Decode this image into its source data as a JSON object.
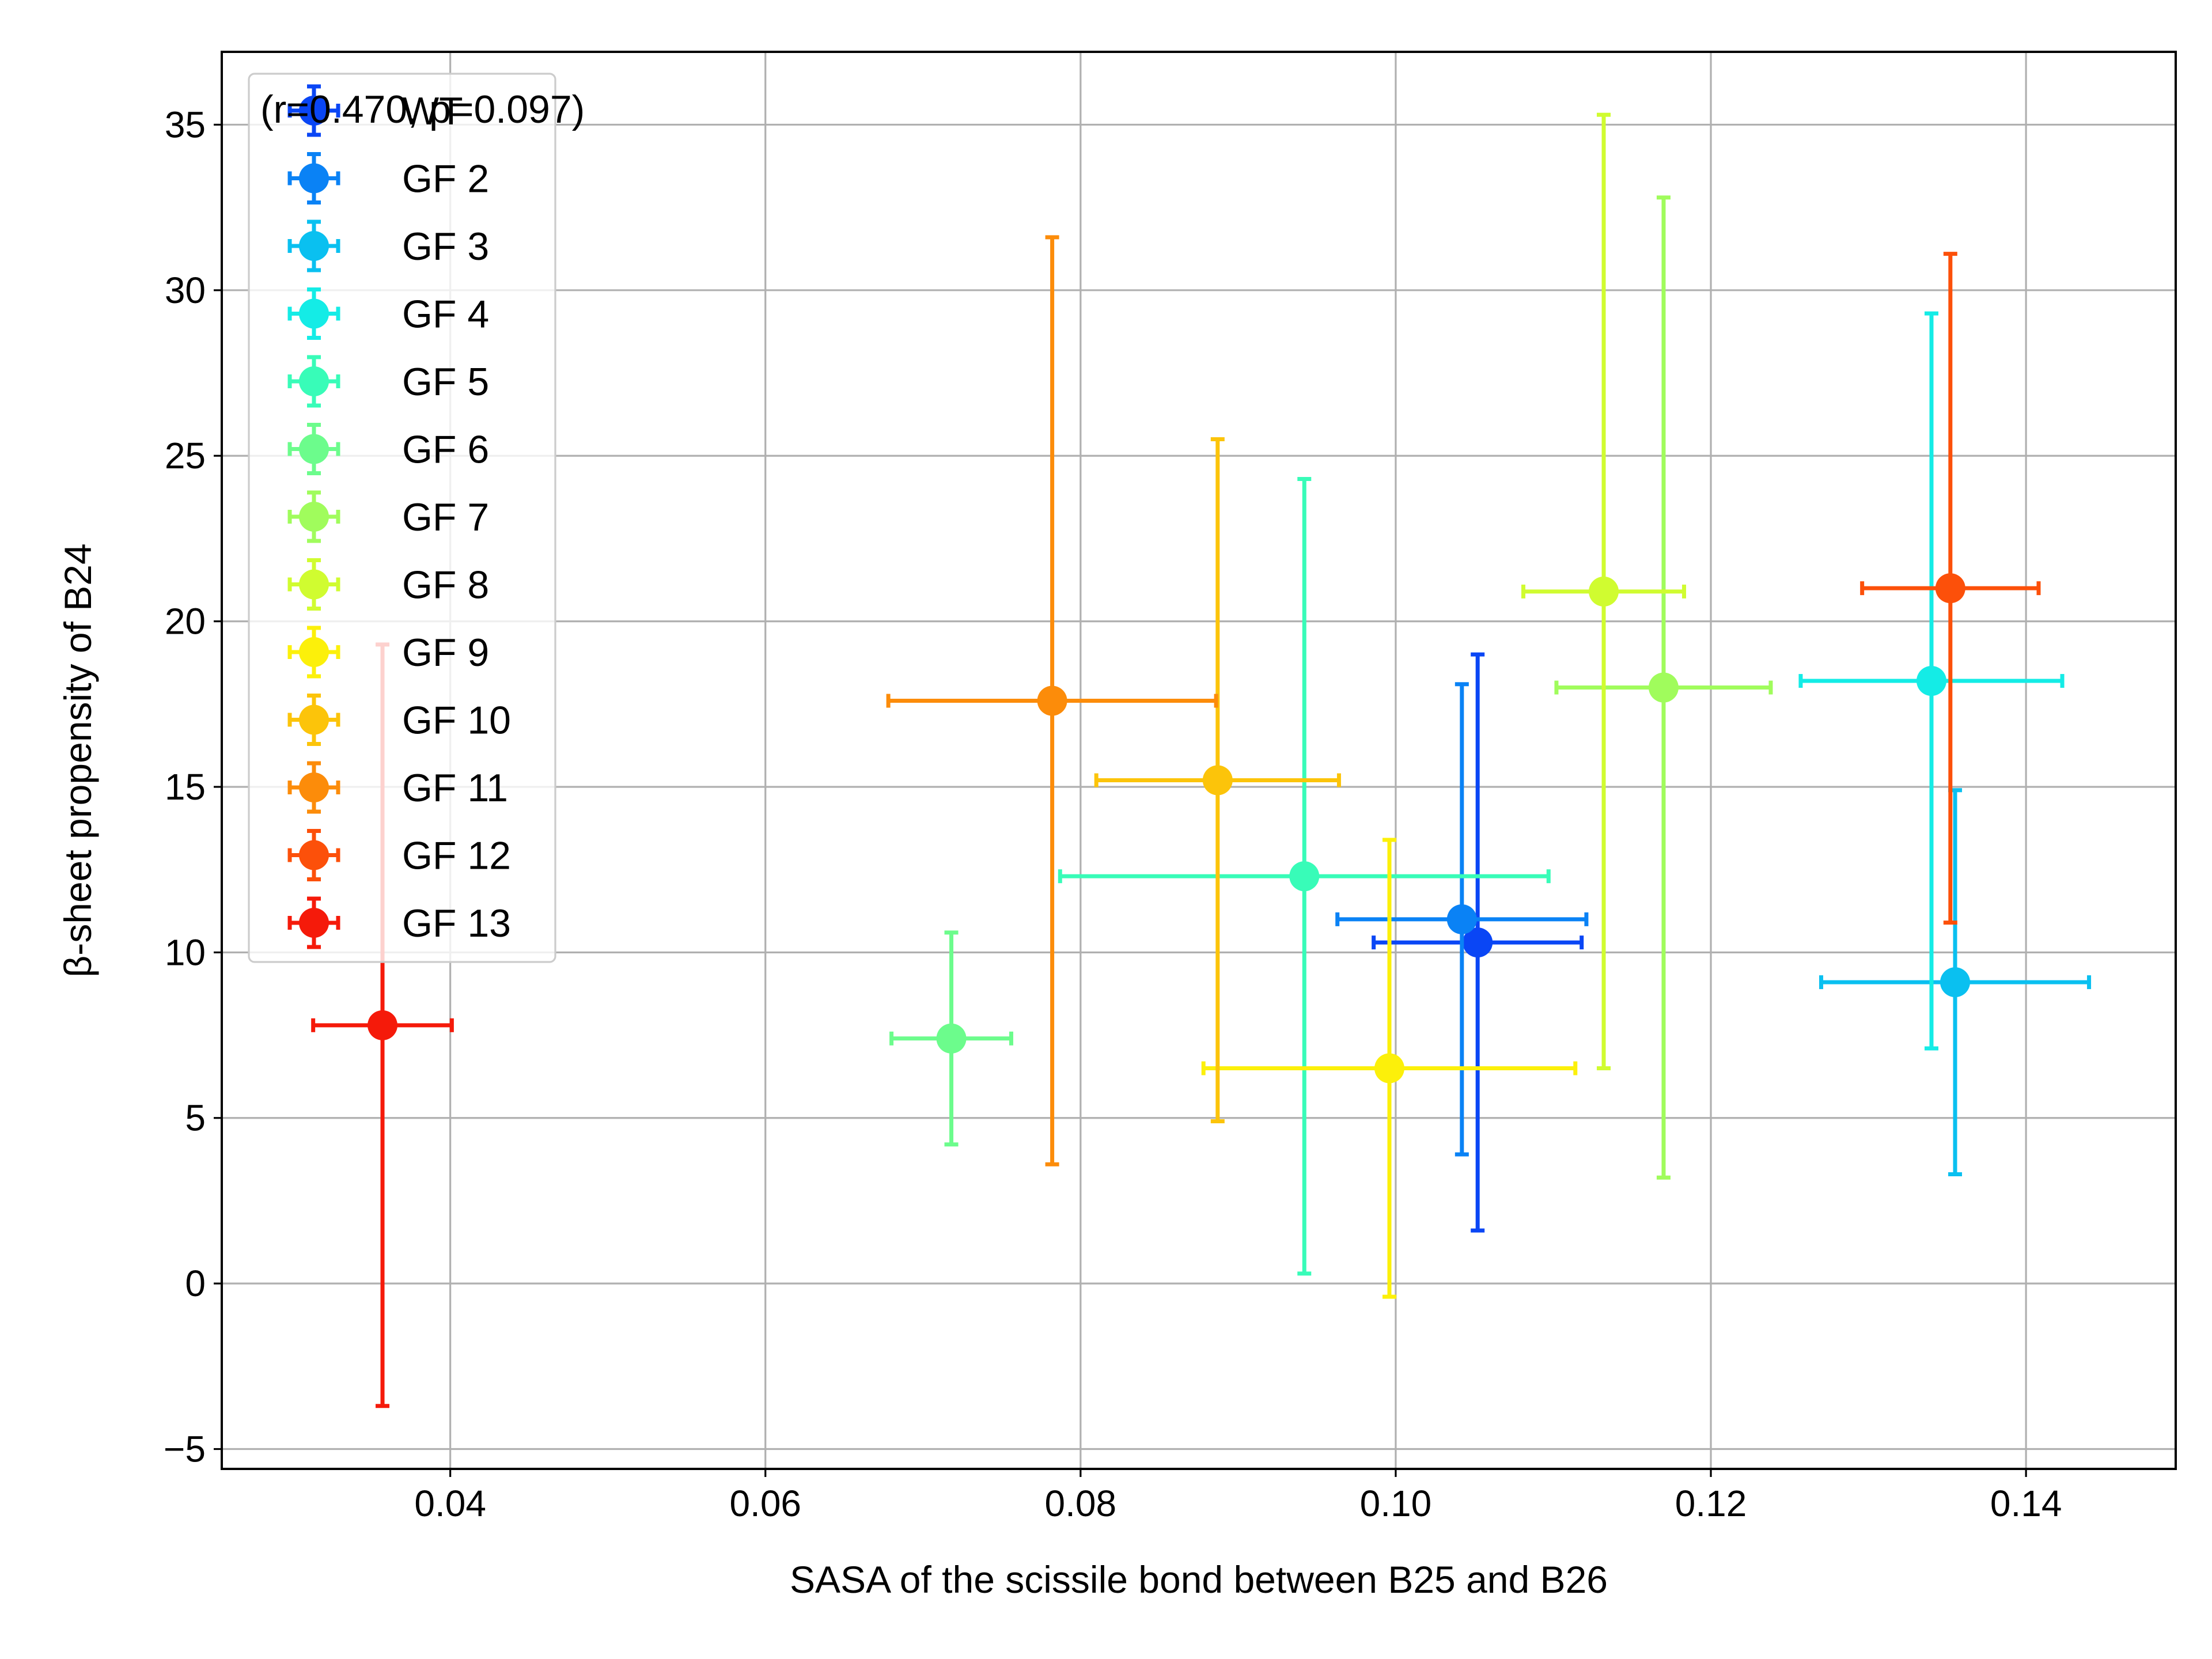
{
  "chart_data": {
    "type": "scatter",
    "title": "",
    "xlabel": "SASA of the scissile bond between B25 and B26",
    "ylabel": "β-sheet propensity of B24",
    "xlim": [
      0.0255,
      0.1495
    ],
    "ylim": [
      -5.6,
      37.2
    ],
    "xticks": [
      0.04,
      0.06,
      0.08,
      0.1,
      0.12,
      0.14
    ],
    "xtick_labels": [
      "0.04",
      "0.06",
      "0.08",
      "0.10",
      "0.12",
      "0.14"
    ],
    "yticks": [
      -5,
      0,
      5,
      10,
      15,
      20,
      25,
      30,
      35
    ],
    "ytick_labels": [
      "−5",
      "0",
      "5",
      "10",
      "15",
      "20",
      "25",
      "30",
      "35"
    ],
    "grid": true,
    "legend_position": "top-left",
    "annotation": "(r=0.470, p=0.097)",
    "series": [
      {
        "name": "WT",
        "color": "#0a46f5",
        "x": 0.1052,
        "y": 10.3,
        "xerr": 0.0066,
        "yerr": 8.7
      },
      {
        "name": "GF 2",
        "color": "#0a82f5",
        "x": 0.1042,
        "y": 11.0,
        "xerr": 0.0079,
        "yerr": 7.1
      },
      {
        "name": "GF 3",
        "color": "#0ac0f0",
        "x": 0.1355,
        "y": 9.1,
        "xerr": 0.0085,
        "yerr": 5.8
      },
      {
        "name": "GF 4",
        "color": "#14ece6",
        "x": 0.134,
        "y": 18.2,
        "xerr": 0.0083,
        "yerr": 11.1
      },
      {
        "name": "GF 5",
        "color": "#38fcb8",
        "x": 0.0942,
        "y": 12.3,
        "xerr": 0.0155,
        "yerr": 12.0
      },
      {
        "name": "GF 6",
        "color": "#6cfc8c",
        "x": 0.0718,
        "y": 7.4,
        "xerr": 0.0038,
        "yerr": 3.2
      },
      {
        "name": "GF 7",
        "color": "#a0fc5c",
        "x": 0.117,
        "y": 18.0,
        "xerr": 0.0068,
        "yerr": 14.8
      },
      {
        "name": "GF 8",
        "color": "#d0fc30",
        "x": 0.1132,
        "y": 20.9,
        "xerr": 0.0051,
        "yerr": 14.4
      },
      {
        "name": "GF 9",
        "color": "#fcf00a",
        "x": 0.0996,
        "y": 6.5,
        "xerr": 0.0118,
        "yerr": 6.9
      },
      {
        "name": "GF 10",
        "color": "#fcc40a",
        "x": 0.0887,
        "y": 15.2,
        "xerr": 0.0077,
        "yerr": 10.3
      },
      {
        "name": "GF 11",
        "color": "#fc8c0a",
        "x": 0.0782,
        "y": 17.6,
        "xerr": 0.0104,
        "yerr": 14.0
      },
      {
        "name": "GF 12",
        "color": "#fc500a",
        "x": 0.1352,
        "y": 21.0,
        "xerr": 0.0056,
        "yerr": 10.1
      },
      {
        "name": "GF 13",
        "color": "#f51a0a",
        "x": 0.0357,
        "y": 7.8,
        "xerr": 0.0044,
        "yerr": 11.5
      }
    ]
  }
}
